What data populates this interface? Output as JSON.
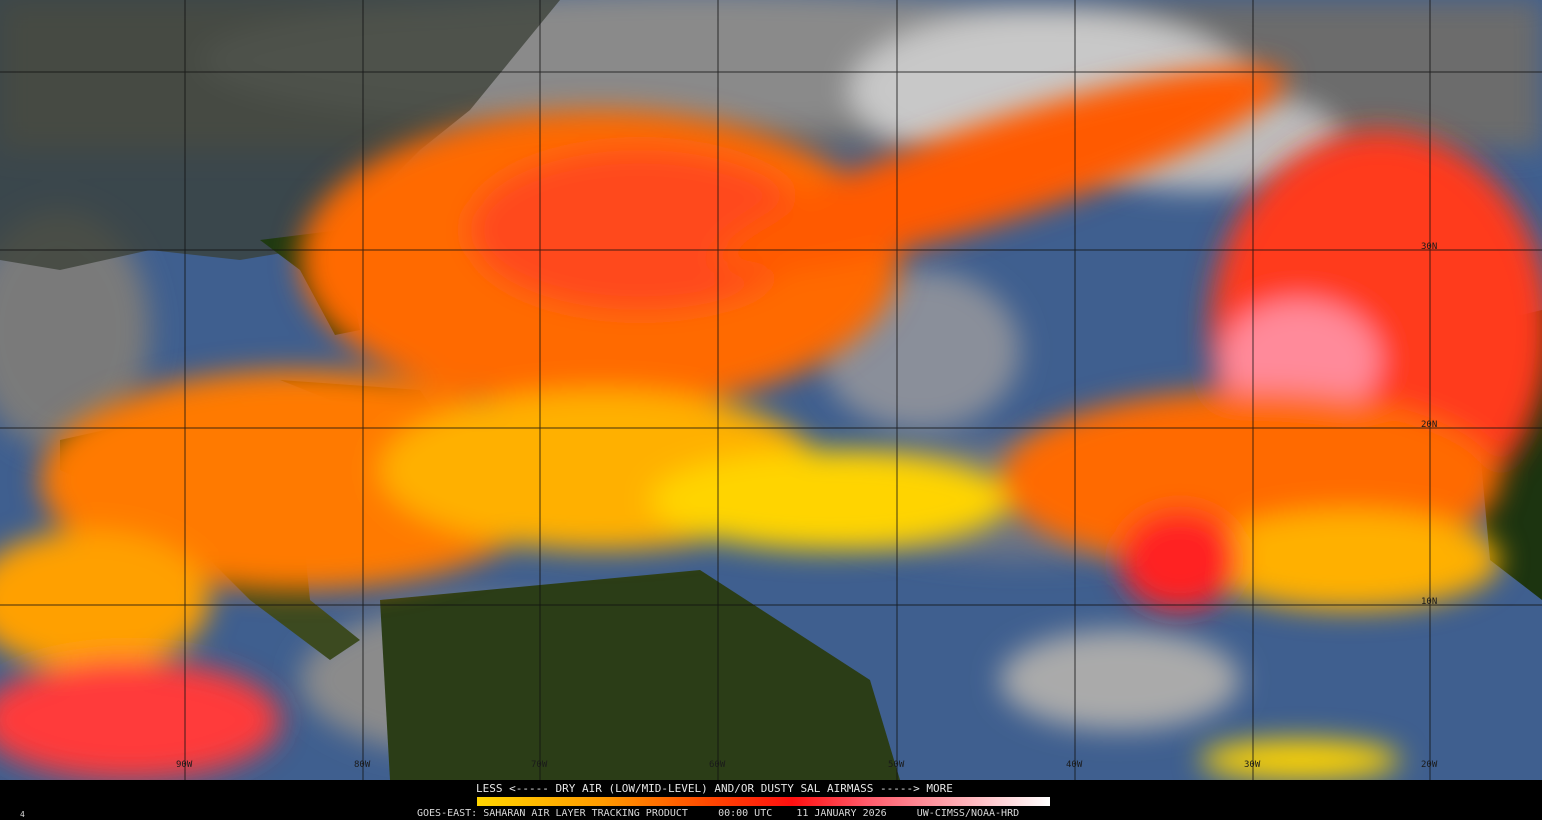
{
  "legend": {
    "title": "LESS <----- DRY AIR (LOW/MID-LEVEL) AND/OR DUSTY SAL AIRMASS -----> MORE",
    "colors": [
      "#ffd400",
      "#ff9a00",
      "#ff4a00",
      "#ff1010",
      "#ff5a6a",
      "#ffb0b8",
      "#ffffff"
    ]
  },
  "product": {
    "satellite": "GOES-EAST:",
    "name": "SAHARAN AIR LAYER TRACKING PRODUCT",
    "time": "00:00 UTC",
    "date": "11 JANUARY 2026",
    "credit": "UW-CIMSS/NOAA-HRD"
  },
  "corner_mark": "4",
  "grid": {
    "longitudes": [
      "90W",
      "80W",
      "70W",
      "60W",
      "50W",
      "40W",
      "30W",
      "20W"
    ],
    "latitudes": [
      "30N",
      "20N",
      "10N"
    ]
  },
  "colors": {
    "ocean_clear": "#3f5f8f",
    "cloud": "#9a9a9a",
    "land": "#1f3a12",
    "sal_low": "#ffd400",
    "sal_mid": "#ff6a00",
    "sal_high": "#ff3030"
  }
}
